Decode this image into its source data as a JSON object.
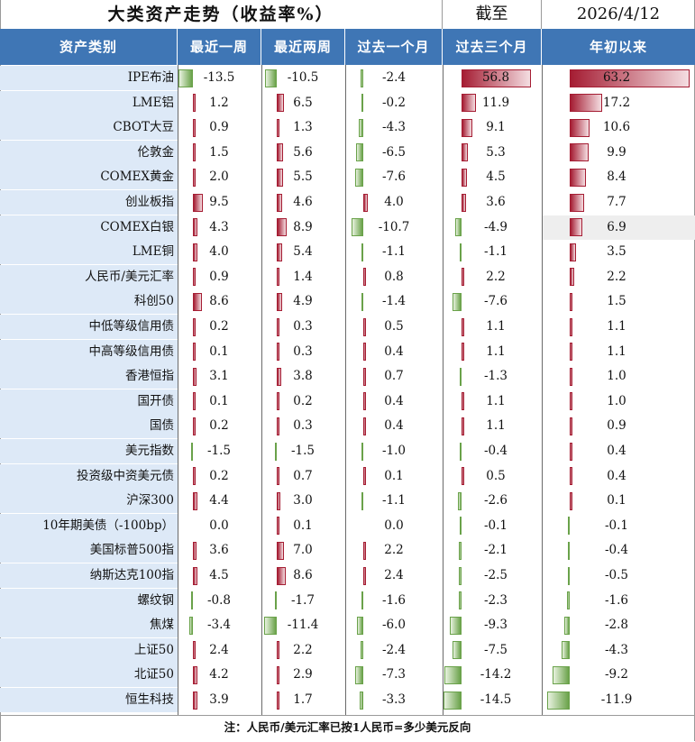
{
  "title": "大类资产走势（收益率%）",
  "as_of_label": "截至",
  "as_of_date": "2026/4/12",
  "columns": {
    "category": "资产类别",
    "w1": "最近一周",
    "w2": "最近两周",
    "m1": "过去一个月",
    "m3": "过去三个月",
    "ytd": "年初以来"
  },
  "highlight_color": "#eeeeee",
  "bar_colors": {
    "positive": "#a51d33",
    "negative": "#6aa24a"
  },
  "rows": [
    {
      "name": "IPE布油",
      "w1": "-13.5",
      "w2": "-10.5",
      "m1": "-2.4",
      "m3": "56.8",
      "ytd": "63.2"
    },
    {
      "name": "LME铝",
      "w1": "1.2",
      "w2": "6.5",
      "m1": "-0.2",
      "m3": "11.9",
      "ytd": "17.2"
    },
    {
      "name": "CBOT大豆",
      "w1": "0.9",
      "w2": "1.3",
      "m1": "-4.3",
      "m3": "9.1",
      "ytd": "10.6"
    },
    {
      "name": "伦敦金",
      "w1": "1.5",
      "w2": "5.6",
      "m1": "-6.5",
      "m3": "5.3",
      "ytd": "9.9"
    },
    {
      "name": "COMEX黄金",
      "w1": "2.0",
      "w2": "5.5",
      "m1": "-7.6",
      "m3": "4.5",
      "ytd": "8.4"
    },
    {
      "name": "创业板指",
      "w1": "9.5",
      "w2": "4.6",
      "m1": "4.0",
      "m3": "3.6",
      "ytd": "7.7"
    },
    {
      "name": "COMEX白银",
      "w1": "4.3",
      "w2": "8.9",
      "m1": "-10.7",
      "m3": "-4.9",
      "ytd": "6.9"
    },
    {
      "name": "LME铜",
      "w1": "4.0",
      "w2": "5.4",
      "m1": "-1.1",
      "m3": "-1.1",
      "ytd": "3.5"
    },
    {
      "name": "人民币/美元汇率",
      "w1": "0.9",
      "w2": "1.4",
      "m1": "0.8",
      "m3": "2.2",
      "ytd": "2.2"
    },
    {
      "name": "科创50",
      "w1": "8.6",
      "w2": "4.9",
      "m1": "-1.4",
      "m3": "-7.6",
      "ytd": "1.5"
    },
    {
      "name": "中低等级信用债",
      "w1": "0.2",
      "w2": "0.3",
      "m1": "0.5",
      "m3": "1.1",
      "ytd": "1.1"
    },
    {
      "name": "中高等级信用债",
      "w1": "0.1",
      "w2": "0.3",
      "m1": "0.4",
      "m3": "1.1",
      "ytd": "1.1"
    },
    {
      "name": "香港恒指",
      "w1": "3.1",
      "w2": "3.8",
      "m1": "0.7",
      "m3": "-1.3",
      "ytd": "1.0"
    },
    {
      "name": "国开债",
      "w1": "0.1",
      "w2": "0.2",
      "m1": "0.4",
      "m3": "1.1",
      "ytd": "1.0"
    },
    {
      "name": "国债",
      "w1": "0.2",
      "w2": "0.3",
      "m1": "0.4",
      "m3": "1.1",
      "ytd": "0.9"
    },
    {
      "name": "美元指数",
      "w1": "-1.5",
      "w2": "-1.5",
      "m1": "-1.0",
      "m3": "-0.4",
      "ytd": "0.4"
    },
    {
      "name": "投资级中资美元债",
      "w1": "0.2",
      "w2": "0.7",
      "m1": "0.1",
      "m3": "0.5",
      "ytd": "0.4"
    },
    {
      "name": "沪深300",
      "w1": "4.4",
      "w2": "3.0",
      "m1": "-1.1",
      "m3": "-2.6",
      "ytd": "0.1"
    },
    {
      "name": "10年期美债（-100bp）",
      "w1": "0.0",
      "w2": "0.1",
      "m1": "0.0",
      "m3": "-0.1",
      "ytd": "-0.1"
    },
    {
      "name": "美国标普500指",
      "w1": "3.6",
      "w2": "7.0",
      "m1": "2.2",
      "m3": "-2.1",
      "ytd": "-0.4"
    },
    {
      "name": "纳斯达克100指",
      "w1": "4.5",
      "w2": "8.6",
      "m1": "2.4",
      "m3": "-2.5",
      "ytd": "-0.5"
    },
    {
      "name": "螺纹钢",
      "w1": "-0.8",
      "w2": "-1.7",
      "m1": "-1.6",
      "m3": "-2.3",
      "ytd": "-1.6"
    },
    {
      "name": "焦煤",
      "w1": "-3.4",
      "w2": "-11.4",
      "m1": "-6.0",
      "m3": "-9.3",
      "ytd": "-2.8"
    },
    {
      "name": "上证50",
      "w1": "2.4",
      "w2": "2.2",
      "m1": "-2.4",
      "m3": "-7.5",
      "ytd": "-4.3"
    },
    {
      "name": "北证50",
      "w1": "4.2",
      "w2": "2.9",
      "m1": "-7.3",
      "m3": "-14.2",
      "ytd": "-9.2"
    },
    {
      "name": "恒生科技",
      "w1": "3.9",
      "w2": "1.7",
      "m1": "-3.3",
      "m3": "-14.5",
      "ytd": "-11.9"
    }
  ],
  "highlight": {
    "row": "COMEX白银",
    "column": "ytd"
  },
  "footnote": "注：人民币/美元汇率已按1人民币=多少美元反向"
}
